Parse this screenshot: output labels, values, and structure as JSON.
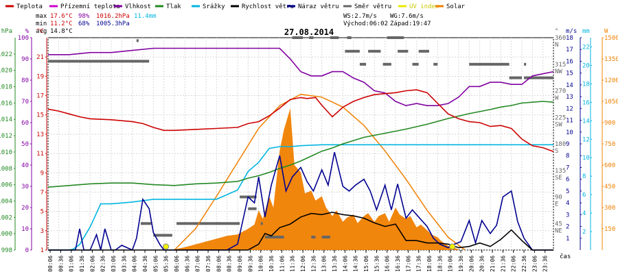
{
  "chart_data": {
    "type": "line",
    "title": "27.08.2014",
    "xlabel": "čas",
    "legend": [
      {
        "name": "Teplota",
        "color": "#cc0000"
      },
      {
        "name": "Přízemní teplota",
        "color": "#cc00cc"
      },
      {
        "name": "Vlhkost",
        "color": "#8000a0"
      },
      {
        "name": "Tlak",
        "color": "#228822"
      },
      {
        "name": "Srážky",
        "color": "#00b4e0"
      },
      {
        "name": "Rychlost větru",
        "color": "#000000"
      },
      {
        "name": "Náraz větru",
        "color": "#000090"
      },
      {
        "name": "Směr větru",
        "color": "#666666"
      },
      {
        "name": "UV index",
        "color": "#e8e800"
      },
      {
        "name": "Solar",
        "color": "#f08000"
      }
    ],
    "stats": {
      "max_label": "max",
      "max_temp": "17.6°C",
      "max_hum": "98%",
      "max_press": "1016.2hPa",
      "rain": "11.4mm",
      "min_label": "min",
      "min_temp": "11.2°C",
      "min_hum": "68%",
      "min_press": "1005.3hPa",
      "avg_label": "avg",
      "avg_temp": "14.8°C"
    },
    "wind_info": {
      "ws": "WS:2.7m/s",
      "wg": "WG:7.6m/s",
      "sunrise": "Východ:06:02",
      "sunset": "Západ:19:47"
    },
    "axes": {
      "pressure": {
        "unit": "hPa",
        "min": 998,
        "max": 1024,
        "ticks": [
          "1022",
          "1020",
          "1018",
          "1016",
          "1014",
          "1012",
          "1010",
          "1008",
          "1006",
          "1004",
          "1002",
          "1000",
          "998"
        ]
      },
      "humidity": {
        "unit": "%",
        "min": 0,
        "max": 100,
        "ticks": [
          "100",
          "90",
          "80",
          "70",
          "60",
          "50",
          "40",
          "30",
          "20",
          "10",
          "0"
        ]
      },
      "temperature": {
        "unit": "°C",
        "min": 1,
        "max": 23,
        "ticks": [
          "21",
          "19",
          "17",
          "15",
          "13",
          "11",
          "9",
          "7",
          "5",
          "3",
          "1"
        ]
      },
      "direction": {
        "unit": "°",
        "min": 0,
        "max": 360,
        "ticks": [
          {
            "deg": "360",
            "dir": "N"
          },
          {
            "deg": "315",
            "dir": "NW"
          },
          {
            "deg": "270",
            "dir": "W"
          },
          {
            "deg": "225",
            "dir": "SW"
          },
          {
            "deg": "180",
            "dir": "S"
          },
          {
            "deg": "135",
            "dir": "SE"
          },
          {
            "deg": "90",
            "dir": "E"
          },
          {
            "deg": "45",
            "dir": "NE"
          }
        ]
      },
      "wind": {
        "unit": "m/s",
        "min": 0,
        "max": 18,
        "ticks": [
          "18",
          "17",
          "16",
          "15",
          "14",
          "13",
          "12",
          "11",
          "10",
          "9",
          "8",
          "7",
          "6",
          "5",
          "4",
          "3",
          "2",
          "1"
        ]
      },
      "rain": {
        "unit": "mm",
        "min": 0,
        "max": 23,
        "ticks": [
          "22",
          "20",
          "18",
          "16",
          "14",
          "12",
          "10",
          "8",
          "6",
          "4",
          "2"
        ]
      },
      "solar": {
        "unit": "W",
        "min": 0,
        "max": 1500,
        "ticks": [
          "1500",
          "1350",
          "1200",
          "1050",
          "900",
          "750",
          "600",
          "450",
          "300",
          "150"
        ]
      }
    },
    "x_ticks": [
      "00:06",
      "00:36",
      "01:06",
      "01:36",
      "02:06",
      "02:36",
      "03:06",
      "03:36",
      "04:06",
      "04:36",
      "05:06",
      "05:36",
      "06:06",
      "06:36",
      "07:06",
      "07:36",
      "08:06",
      "08:36",
      "09:06",
      "09:36",
      "10:06",
      "10:36",
      "11:06",
      "11:36",
      "12:06",
      "12:36",
      "13:06",
      "13:36",
      "14:06",
      "14:36",
      "15:06",
      "15:36",
      "16:06",
      "16:36",
      "17:06",
      "17:36",
      "18:06",
      "18:36",
      "19:06",
      "19:36",
      "20:06",
      "20:36",
      "21:06",
      "21:36",
      "22:06",
      "22:36",
      "23:06",
      "23:36"
    ],
    "x_range": [
      0,
      24
    ],
    "series": [
      {
        "name": "Teplota",
        "axis": "temperature",
        "color": "#cc0000",
        "x": [
          0,
          0.5,
          1,
          1.5,
          2,
          3,
          4,
          4.5,
          5,
          5.5,
          6,
          7,
          8,
          9,
          9.5,
          10,
          10.5,
          11,
          11.5,
          12,
          12.3,
          12.7,
          13,
          13.5,
          14,
          14.5,
          15,
          15.5,
          16,
          16.5,
          17,
          17.5,
          18,
          18.5,
          19,
          19.5,
          20,
          20.5,
          21,
          21.5,
          22,
          22.5,
          23,
          23.5,
          24
        ],
        "y": [
          15.6,
          15.4,
          15.1,
          14.8,
          14.6,
          14.5,
          14.3,
          14.1,
          13.7,
          13.4,
          13.4,
          13.5,
          13.6,
          13.7,
          14.1,
          14.3,
          14.9,
          15.7,
          16.6,
          16.8,
          16.7,
          16.8,
          16.0,
          14.8,
          15.8,
          16.4,
          16.8,
          17.1,
          17.2,
          17.3,
          17.5,
          17.6,
          17.3,
          16.2,
          15.1,
          14.6,
          14.3,
          14.2,
          13.8,
          13.9,
          13.6,
          12.5,
          11.8,
          11.6,
          11.2
        ]
      },
      {
        "name": "Vlhkost",
        "axis": "humidity",
        "color": "#8000a0",
        "x": [
          0,
          1,
          2,
          3,
          4,
          5,
          6,
          7,
          8,
          9,
          10,
          11,
          11.5,
          12,
          12.5,
          13,
          13.5,
          14,
          14.5,
          15,
          15.5,
          16,
          16.5,
          17,
          17.5,
          18,
          18.5,
          19,
          19.5,
          20,
          20.5,
          21,
          21.5,
          22,
          22.5,
          23,
          23.5,
          24
        ],
        "y": [
          92,
          92,
          93,
          93,
          94,
          95,
          95,
          95,
          95,
          95,
          95,
          95,
          90,
          84,
          82,
          82,
          84,
          84,
          81,
          79,
          75,
          74,
          70,
          68,
          69,
          68,
          68,
          69,
          72,
          77,
          77,
          79,
          79,
          78,
          78,
          82,
          83,
          84
        ]
      },
      {
        "name": "Tlak",
        "axis": "pressure",
        "color": "#228822",
        "x": [
          0,
          1,
          2,
          3,
          4,
          5,
          6,
          7,
          8,
          9,
          9.5,
          10,
          10.5,
          11,
          11.5,
          12,
          12.5,
          13,
          13.5,
          14,
          15,
          16,
          17,
          18,
          19,
          20,
          21,
          21.5,
          22,
          22.5,
          23,
          23.5,
          24
        ],
        "y": [
          1005.7,
          1005.9,
          1006.1,
          1006.2,
          1006.2,
          1006.0,
          1005.9,
          1006.1,
          1006.2,
          1006.4,
          1006.8,
          1007.1,
          1007.5,
          1008.0,
          1008.4,
          1008.9,
          1009.5,
          1010.1,
          1010.5,
          1011.0,
          1011.8,
          1012.3,
          1012.8,
          1013.4,
          1014.1,
          1014.7,
          1015.2,
          1015.5,
          1015.7,
          1016.0,
          1016.1,
          1016.2,
          1016.1
        ]
      },
      {
        "name": "Srážky",
        "axis": "rain",
        "color": "#00b4e0",
        "x": [
          0,
          1,
          1.2,
          1.5,
          2,
          2.5,
          3,
          3.5,
          4,
          5,
          5.5,
          6,
          7,
          7.5,
          8,
          8.5,
          9,
          9.5,
          10,
          10.5,
          11,
          11.5,
          12,
          13,
          14,
          15,
          16,
          17,
          18,
          19,
          20,
          21,
          22,
          23,
          23.5,
          24
        ],
        "y": [
          0,
          0,
          0.1,
          0.6,
          2.5,
          5.0,
          5.0,
          5.1,
          5.2,
          5.5,
          5.5,
          5.5,
          5.5,
          5.5,
          5.5,
          6.0,
          6.5,
          8.5,
          9.5,
          11.0,
          11.2,
          11.2,
          11.3,
          11.4,
          11.4,
          11.4,
          11.4,
          11.4,
          11.4,
          11.4,
          11.4,
          11.4,
          11.4,
          11.4,
          11.4,
          11.4
        ]
      },
      {
        "name": "Rychlost větru",
        "axis": "wind",
        "color": "#000000",
        "x": [
          0,
          9.5,
          10,
          10.3,
          10.6,
          11,
          11.5,
          12,
          12.5,
          13,
          13.5,
          14,
          14.5,
          15,
          15.5,
          16,
          16.5,
          17,
          17.5,
          18,
          18.5,
          19,
          19.5,
          20,
          20.5,
          21,
          21.5,
          22,
          22.5,
          23,
          23.5,
          24
        ],
        "y": [
          0,
          0,
          0.5,
          1.4,
          1.2,
          1.9,
          2.2,
          2.8,
          3.1,
          3.0,
          3.2,
          3.0,
          2.9,
          2.7,
          2.3,
          2.0,
          2.2,
          0.8,
          0.8,
          0.6,
          0.6,
          0.5,
          0.2,
          0.3,
          0.6,
          0.3,
          0.9,
          1.7,
          0.8,
          0,
          0,
          0
        ]
      },
      {
        "name": "Náraz větru",
        "axis": "wind",
        "color": "#000090",
        "x": [
          0,
          1.3,
          1.5,
          1.7,
          2,
          2.3,
          2.5,
          2.7,
          3,
          3.2,
          3.5,
          4,
          4.2,
          4.5,
          4.8,
          5,
          5.3,
          5.5,
          8.5,
          9,
          9.5,
          9.8,
          10,
          10.3,
          10.6,
          11,
          11.3,
          11.6,
          12,
          12.3,
          12.6,
          13,
          13.3,
          13.6,
          14,
          14.3,
          14.6,
          15,
          15.3,
          15.6,
          16,
          16.3,
          16.6,
          17,
          17.3,
          17.6,
          18,
          18.3,
          18.6,
          19,
          19.3,
          19.6,
          20,
          20.3,
          20.6,
          21,
          21.3,
          21.6,
          22,
          22.3,
          22.6,
          23,
          23.3,
          23.6,
          24
        ],
        "y": [
          0,
          0,
          1.8,
          0,
          0,
          1.3,
          0,
          1.8,
          0,
          0,
          0.4,
          0,
          1.0,
          4.3,
          3.5,
          1.5,
          0.5,
          0,
          0,
          0.5,
          4.5,
          4.0,
          6.2,
          2.8,
          5.5,
          8.0,
          5.0,
          6.2,
          7.0,
          5.8,
          5.0,
          6.8,
          5.5,
          8.3,
          5.4,
          5.0,
          5.5,
          6.0,
          5.0,
          3.4,
          5.5,
          3.4,
          5.6,
          2.7,
          3.4,
          2.8,
          2.0,
          1.0,
          0.5,
          0.2,
          0.5,
          0.7,
          2.5,
          0.6,
          2.5,
          1.4,
          2.1,
          4.5,
          5.0,
          2.4,
          1.0,
          0,
          0,
          0,
          0
        ]
      },
      {
        "name": "Solar",
        "axis": "solar",
        "color": "#f08000",
        "style": "fill",
        "x": [
          6,
          6.5,
          7,
          7.5,
          8,
          8.5,
          9,
          9.5,
          9.8,
          10,
          10.2,
          10.5,
          10.7,
          11,
          11.2,
          11.5,
          11.7,
          12,
          12.2,
          12.5,
          12.7,
          13,
          13.2,
          13.5,
          13.7,
          14,
          14.2,
          14.5,
          14.7,
          15,
          15.2,
          15.5,
          15.7,
          16,
          16.2,
          16.5,
          16.7,
          17,
          17.2,
          17.5,
          17.7,
          18,
          18.2,
          18.5,
          18.7,
          19,
          19.5
        ],
        "y": [
          5,
          20,
          40,
          60,
          80,
          100,
          110,
          150,
          180,
          280,
          220,
          380,
          300,
          700,
          850,
          1000,
          600,
          550,
          400,
          420,
          350,
          380,
          300,
          240,
          280,
          200,
          230,
          250,
          190,
          240,
          260,
          200,
          240,
          260,
          200,
          300,
          250,
          220,
          240,
          160,
          180,
          140,
          110,
          90,
          60,
          30,
          5
        ]
      },
      {
        "name": "Solar",
        "axis": "solar",
        "color": "#f08000",
        "style": "line",
        "x": [
          6,
          7,
          8,
          9,
          10,
          11,
          12,
          13,
          14,
          15,
          16,
          17,
          18,
          19,
          19.8
        ],
        "y": [
          0,
          150,
          380,
          620,
          860,
          1020,
          1100,
          1080,
          1010,
          880,
          700,
          500,
          280,
          90,
          0
        ]
      },
      {
        "name": "UV index",
        "axis": "wind",
        "color": "#e8e800",
        "x": [
          5.6,
          19.2
        ],
        "y": [
          0.4,
          0.4
        ]
      }
    ],
    "wind_direction": [
      {
        "x0": 0,
        "x1": 4.8,
        "deg": 320
      },
      {
        "x0": 4.2,
        "x1": 4.3,
        "deg": 355
      },
      {
        "x0": 4.4,
        "x1": 4.9,
        "deg": 45
      },
      {
        "x0": 5.0,
        "x1": 5.9,
        "deg": 25
      },
      {
        "x0": 6.1,
        "x1": 9.1,
        "deg": 45
      },
      {
        "x0": 9.1,
        "x1": 9.9,
        "deg": 90
      },
      {
        "x0": 9.5,
        "x1": 9.9,
        "deg": 70
      },
      {
        "x0": 10.1,
        "x1": 10.2,
        "deg": 45
      },
      {
        "x0": 10.3,
        "x1": 11.2,
        "deg": 22
      },
      {
        "x0": 11.6,
        "x1": 12.1,
        "deg": 360
      },
      {
        "x0": 12.4,
        "x1": 12.6,
        "deg": 360
      },
      {
        "x0": 12.5,
        "x1": 12.7,
        "deg": 22
      },
      {
        "x0": 13.0,
        "x1": 13.4,
        "deg": 22
      },
      {
        "x0": 13.4,
        "x1": 13.8,
        "deg": 360
      },
      {
        "x0": 14.2,
        "x1": 14.4,
        "deg": 360
      },
      {
        "x0": 14.1,
        "x1": 14.8,
        "deg": 337
      },
      {
        "x0": 14.8,
        "x1": 15.1,
        "deg": 315
      },
      {
        "x0": 15.2,
        "x1": 15.8,
        "deg": 337
      },
      {
        "x0": 15.9,
        "x1": 16.3,
        "deg": 315
      },
      {
        "x0": 16.1,
        "x1": 16.9,
        "deg": 360
      },
      {
        "x0": 16.6,
        "x1": 17.1,
        "deg": 337
      },
      {
        "x0": 17.3,
        "x1": 17.6,
        "deg": 315
      },
      {
        "x0": 17.6,
        "x1": 18.1,
        "deg": 337
      },
      {
        "x0": 18.3,
        "x1": 18.5,
        "deg": 315
      },
      {
        "x0": 20.0,
        "x1": 21.9,
        "deg": 315
      },
      {
        "x0": 21.9,
        "x1": 22.5,
        "deg": 292
      },
      {
        "x0": 22.6,
        "x1": 24,
        "deg": 292
      },
      {
        "x0": 22.6,
        "x1": 22.7,
        "deg": 315
      }
    ]
  }
}
